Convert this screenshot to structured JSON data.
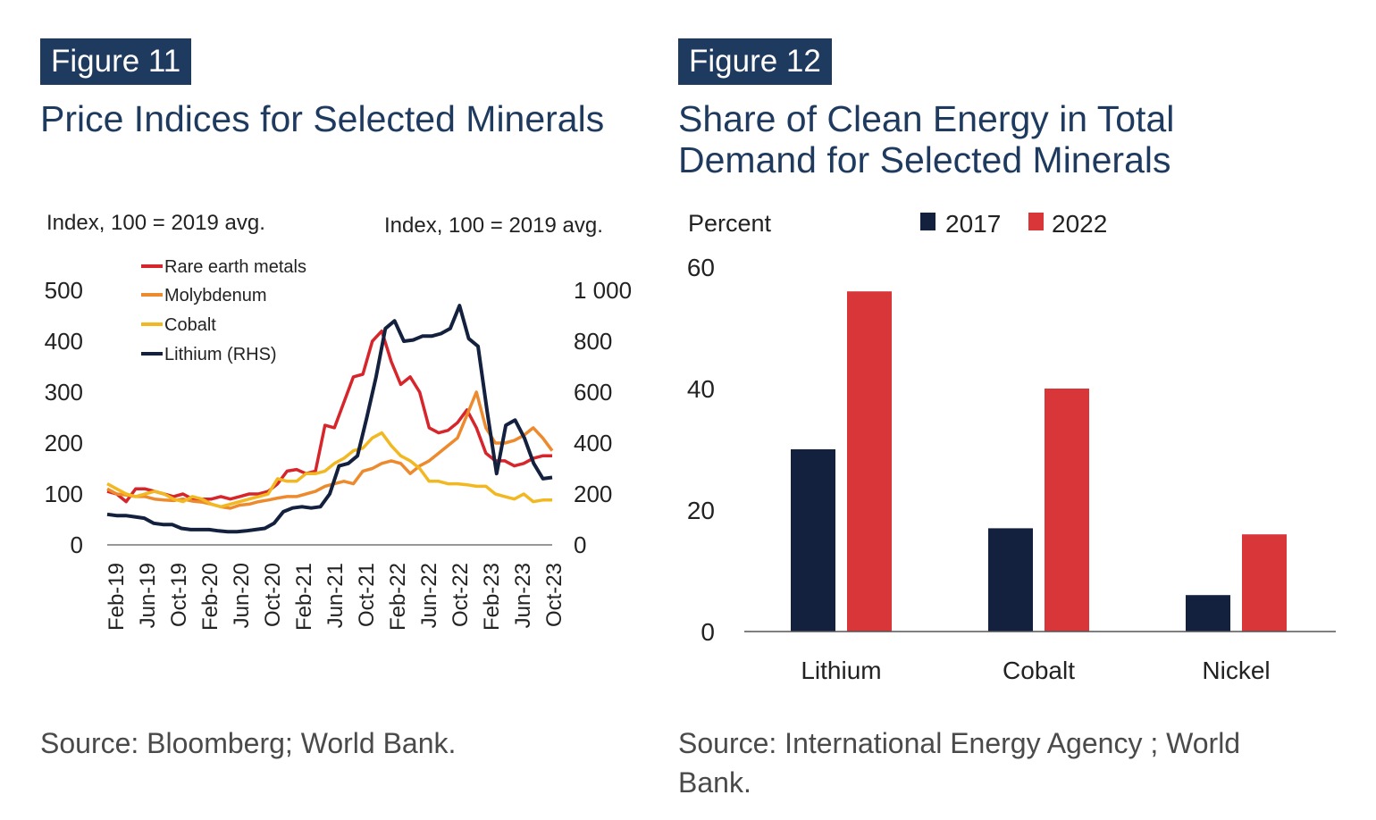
{
  "figures": {
    "fig11": {
      "tag": "Figure 11",
      "title": "Price Indices for Selected Minerals",
      "source": "Source: Bloomberg; World Bank."
    },
    "fig12": {
      "tag": "Figure 12",
      "title_line1": "Share of Clean Energy in Total",
      "title_line2": "Demand for Selected Minerals",
      "source_line1": "Source:  International  Energy  Agency  ;  World",
      "source_line2": "Bank."
    }
  },
  "colors": {
    "rare_earth": "#d7262b",
    "molybdenum": "#ee8a2e",
    "cobalt": "#f2b822",
    "lithium": "#13213f",
    "bar2017": "#13213f",
    "bar2022": "#d9363a",
    "title": "#1f3a5f"
  },
  "chart_data": [
    {
      "type": "line",
      "left_unit": "Index, 100 = 2019 avg.",
      "right_unit": "Index, 100 = 2019 avg.",
      "ylim_left": [
        0,
        500
      ],
      "ylim_right": [
        0,
        1000
      ],
      "yticks_left": [
        "0",
        "100",
        "200",
        "300",
        "400",
        "500"
      ],
      "yticks_right": [
        "0",
        "200",
        "400",
        "600",
        "800",
        "1 000"
      ],
      "xticks": [
        "Feb-19",
        "Jun-19",
        "Oct-19",
        "Feb-20",
        "Jun-20",
        "Oct-20",
        "Feb-21",
        "Jun-21",
        "Oct-21",
        "Feb-22",
        "Jun-22",
        "Oct-22",
        "Feb-23",
        "Jun-23",
        "Oct-23"
      ],
      "legend": [
        "Rare earth metals",
        "Molybdenum",
        "Cobalt",
        "Lithium (RHS)"
      ],
      "series": [
        {
          "name": "Rare earth metals",
          "axis": "left",
          "values": [
            105,
            100,
            85,
            110,
            110,
            105,
            100,
            95,
            100,
            90,
            90,
            90,
            95,
            90,
            95,
            100,
            100,
            105,
            120,
            145,
            148,
            140,
            145,
            235,
            230,
            280,
            330,
            335,
            400,
            420,
            360,
            315,
            330,
            300,
            230,
            220,
            225,
            240,
            265,
            230,
            180,
            165,
            165,
            155,
            160,
            170,
            175,
            175
          ]
        },
        {
          "name": "Molybdenum",
          "axis": "left",
          "values": [
            110,
            100,
            98,
            95,
            95,
            90,
            88,
            87,
            90,
            86,
            84,
            80,
            75,
            72,
            78,
            80,
            85,
            88,
            92,
            95,
            95,
            100,
            105,
            115,
            120,
            125,
            120,
            145,
            150,
            160,
            165,
            160,
            140,
            155,
            165,
            180,
            195,
            210,
            255,
            300,
            230,
            200,
            200,
            205,
            215,
            230,
            210,
            185
          ]
        },
        {
          "name": "Cobalt",
          "axis": "left",
          "values": [
            120,
            110,
            100,
            95,
            100,
            105,
            100,
            90,
            85,
            95,
            90,
            80,
            75,
            80,
            85,
            90,
            95,
            100,
            130,
            125,
            125,
            140,
            140,
            145,
            160,
            170,
            185,
            190,
            210,
            220,
            195,
            175,
            165,
            150,
            125,
            125,
            120,
            120,
            118,
            115,
            115,
            100,
            95,
            90,
            100,
            85,
            88,
            88
          ]
        },
        {
          "name": "Lithium (RHS)",
          "axis": "right",
          "values": [
            120,
            115,
            115,
            110,
            105,
            85,
            80,
            80,
            65,
            60,
            60,
            60,
            55,
            52,
            52,
            55,
            60,
            65,
            85,
            130,
            145,
            150,
            145,
            150,
            200,
            310,
            320,
            350,
            500,
            660,
            850,
            880,
            800,
            805,
            820,
            820,
            830,
            850,
            940,
            810,
            780,
            520,
            280,
            470,
            490,
            420,
            320,
            260,
            265
          ]
        }
      ]
    },
    {
      "type": "bar",
      "ylabel": "Percent",
      "ylim": [
        0,
        60
      ],
      "yticks": [
        "0",
        "20",
        "40",
        "60"
      ],
      "categories": [
        "Lithium",
        "Cobalt",
        "Nickel"
      ],
      "series": [
        {
          "name": "2017",
          "values": [
            30,
            17,
            6
          ]
        },
        {
          "name": "2022",
          "values": [
            56,
            40,
            16
          ]
        }
      ]
    }
  ]
}
